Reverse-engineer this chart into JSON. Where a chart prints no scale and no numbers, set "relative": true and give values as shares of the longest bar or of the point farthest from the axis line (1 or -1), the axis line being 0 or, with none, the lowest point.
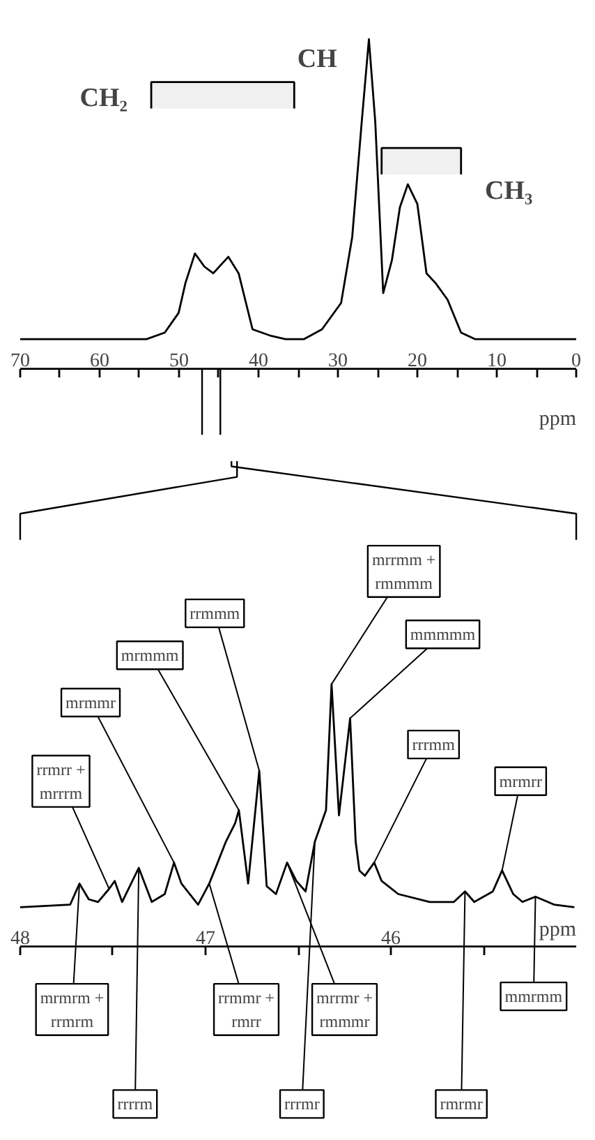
{
  "chart_data": [
    {
      "type": "line",
      "relative": true,
      "color": "#000000",
      "xlabel": "ppm",
      "x": [
        70,
        66.97,
        62.3,
        54.1,
        51.8,
        50.05,
        49.2,
        48.0,
        46.8,
        45.7,
        43.8,
        42.5,
        40.75,
        38.4,
        36.6,
        34.3,
        32.0,
        29.6,
        28.2,
        27.0,
        26.1,
        25.3,
        24.3,
        23.2,
        22.2,
        21.2,
        20.0,
        18.85,
        17.7,
        16.2,
        14.5,
        12.7,
        4.0,
        0
      ],
      "values": [
        0.09,
        0.09,
        0.09,
        0.09,
        0.11,
        0.17,
        0.26,
        0.35,
        0.31,
        0.29,
        0.34,
        0.29,
        0.12,
        0.1,
        0.09,
        0.09,
        0.12,
        0.2,
        0.4,
        0.75,
        1.0,
        0.75,
        0.23,
        0.33,
        0.49,
        0.56,
        0.5,
        0.29,
        0.26,
        0.21,
        0.11,
        0.09,
        0.09,
        0.09
      ],
      "xlim": [
        70,
        0
      ],
      "xticks": [
        70,
        60,
        50,
        40,
        30,
        20,
        10,
        0
      ],
      "bands": [
        {
          "axis": "x",
          "from": 53.5,
          "to": 35.5,
          "label": "CH₂"
        },
        {
          "axis": "x",
          "from": 24.5,
          "to": 14.5,
          "label": "CH₃"
        }
      ],
      "annotations": [
        {
          "text": "CH",
          "x": 26.1,
          "y": 1.0
        }
      ]
    },
    {
      "type": "line",
      "relative": true,
      "color": "#000000",
      "xlabel": "ppm",
      "x": [
        48.0,
        47.73,
        47.68,
        47.63,
        47.58,
        47.52,
        47.49,
        47.45,
        47.36,
        47.29,
        47.22,
        47.17,
        47.13,
        47.04,
        46.98,
        46.94,
        46.89,
        46.84,
        46.82,
        46.77,
        46.71,
        46.67,
        46.62,
        46.56,
        46.51,
        46.46,
        46.41,
        46.39,
        46.35,
        46.32,
        46.28,
        46.22,
        46.19,
        46.17,
        46.14,
        46.09,
        46.05,
        45.96,
        45.79,
        45.66,
        45.6,
        45.55,
        45.45,
        45.4,
        45.34,
        45.29,
        45.22,
        45.12,
        45.01
      ],
      "values": [
        0.15,
        0.16,
        0.24,
        0.18,
        0.17,
        0.22,
        0.25,
        0.17,
        0.3,
        0.17,
        0.2,
        0.32,
        0.24,
        0.16,
        0.24,
        0.31,
        0.4,
        0.47,
        0.52,
        0.24,
        0.67,
        0.23,
        0.2,
        0.32,
        0.25,
        0.21,
        0.4,
        0.44,
        0.52,
        1.0,
        0.5,
        0.87,
        0.4,
        0.29,
        0.27,
        0.32,
        0.25,
        0.2,
        0.17,
        0.17,
        0.21,
        0.17,
        0.21,
        0.29,
        0.2,
        0.17,
        0.19,
        0.16,
        0.15
      ],
      "xlim": [
        48,
        45
      ],
      "xticks": [
        48,
        47,
        46
      ],
      "annotations": [
        {
          "text": "mrrmm + rmmmm",
          "x": 46.32,
          "y": 1.0
        },
        {
          "text": "mmmmm",
          "x": 46.22,
          "y": 0.87
        },
        {
          "text": "rrmmm",
          "x": 46.71,
          "y": 0.67
        },
        {
          "text": "mrmmm",
          "x": 46.82,
          "y": 0.52
        },
        {
          "text": "mrmmr",
          "x": 47.17,
          "y": 0.32
        },
        {
          "text": "rrmrr + mrrrm",
          "x": 47.52,
          "y": 0.22
        },
        {
          "text": "rrrmm",
          "x": 46.09,
          "y": 0.32
        },
        {
          "text": "mrmrr",
          "x": 45.4,
          "y": 0.29
        },
        {
          "text": "mrmrm + rrmrm",
          "x": 47.68,
          "y": 0.24
        },
        {
          "text": "rrrrm",
          "x": 47.36,
          "y": 0.3
        },
        {
          "text": "rrmmr + rmrr",
          "x": 46.98,
          "y": 0.24
        },
        {
          "text": "mrrmr + rmmmr",
          "x": 46.56,
          "y": 0.32
        },
        {
          "text": "rrrmr",
          "x": 46.41,
          "y": 0.4
        },
        {
          "text": "rmrmr",
          "x": 45.6,
          "y": 0.21
        },
        {
          "text": "mmrmm",
          "x": 45.22,
          "y": 0.19
        }
      ]
    }
  ]
}
